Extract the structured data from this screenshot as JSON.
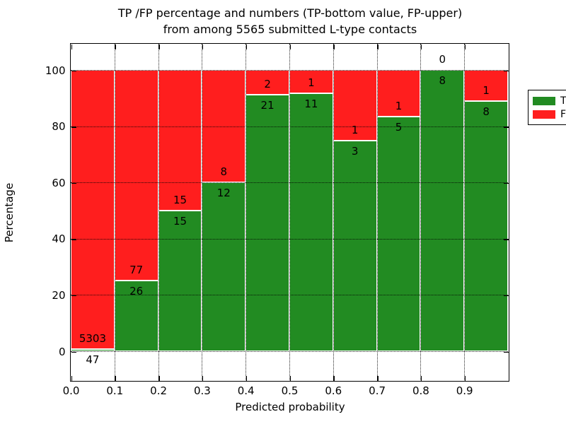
{
  "title": {
    "line1": "TP /FP percentage and numbers (TP-bottom value, FP-upper)",
    "line2": "from among 5565 submitted L-type contacts"
  },
  "axes": {
    "xlabel": "Predicted probability",
    "ylabel": "Percentage",
    "x_tick_labels": [
      "0.0",
      "0.1",
      "0.2",
      "0.3",
      "0.4",
      "0.5",
      "0.6",
      "0.7",
      "0.8",
      "0.9"
    ],
    "y_tick_labels": [
      "0",
      "20",
      "40",
      "60",
      "80",
      "100"
    ],
    "y_tick_values": [
      0,
      20,
      40,
      60,
      80,
      100
    ]
  },
  "legend": {
    "items": [
      {
        "label": "TP",
        "color": "#228b22"
      },
      {
        "label": "FP",
        "color": "#ff1e1e"
      }
    ],
    "position": "upper right"
  },
  "chart_data": {
    "type": "bar",
    "stacked": true,
    "title": "TP /FP percentage and numbers (TP-bottom value, FP-upper) from among 5565 submitted L-type contacts",
    "xlabel": "Predicted probability",
    "ylabel": "Percentage",
    "x_bin_edges": [
      0.0,
      0.1,
      0.2,
      0.3,
      0.4,
      0.5,
      0.6,
      0.7,
      0.8,
      0.9,
      1.0
    ],
    "categories": [
      "0.0-0.1",
      "0.1-0.2",
      "0.2-0.3",
      "0.3-0.4",
      "0.4-0.5",
      "0.5-0.6",
      "0.6-0.7",
      "0.7-0.8",
      "0.8-0.9",
      "0.9-1.0"
    ],
    "series": [
      {
        "name": "TP",
        "color": "#228b22",
        "counts": [
          47,
          26,
          15,
          12,
          21,
          11,
          3,
          5,
          8,
          8
        ]
      },
      {
        "name": "FP",
        "color": "#ff1e1e",
        "counts": [
          5303,
          77,
          15,
          8,
          2,
          1,
          1,
          1,
          0,
          1
        ]
      }
    ],
    "bars_normalized_to_percent": true,
    "total_contacts": 5565,
    "ylim": [
      -10.5,
      109.5
    ],
    "xlim": [
      0.0,
      1.0
    ],
    "y_ticks": [
      0,
      20,
      40,
      60,
      80,
      100
    ],
    "grid": "dotted, drawn over bars",
    "bar_edge_color": "#ffffff",
    "legend_position": "upper right",
    "annotation_rule": "TP count below segment boundary, FP count above segment boundary"
  }
}
